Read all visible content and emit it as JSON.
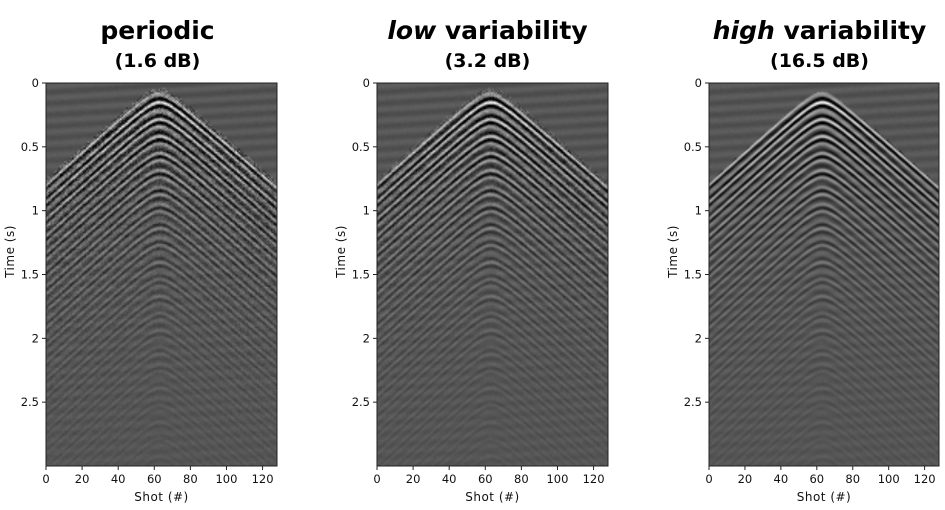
{
  "chart_data": [
    {
      "type": "heatmap",
      "title_em": "",
      "title_rest": "periodic",
      "subtitle": "(1.6 dB)",
      "xlabel": "Shot (#)",
      "ylabel": "Time (s)",
      "xlim": [
        0,
        128
      ],
      "ylim": [
        3.0,
        0
      ],
      "xticks": [
        "0",
        "20",
        "40",
        "60",
        "80",
        "100",
        "120"
      ],
      "yticks": [
        "0",
        "0.5",
        "1",
        "1.5",
        "2",
        "2.5"
      ],
      "apex_shot": 63,
      "apex_time": 0.08,
      "noise_level": 0.55,
      "colormap": "gray",
      "background_color": "#555555"
    },
    {
      "type": "heatmap",
      "title_em": "low",
      "title_rest": " variability",
      "subtitle": "(3.2 dB)",
      "xlabel": "Shot (#)",
      "ylabel": "Time (s)",
      "xlim": [
        0,
        128
      ],
      "ylim": [
        3.0,
        0
      ],
      "xticks": [
        "0",
        "20",
        "40",
        "60",
        "80",
        "100",
        "120"
      ],
      "yticks": [
        "0",
        "0.5",
        "1",
        "1.5",
        "2",
        "2.5"
      ],
      "apex_shot": 63,
      "apex_time": 0.08,
      "noise_level": 0.35,
      "colormap": "gray",
      "background_color": "#555555"
    },
    {
      "type": "heatmap",
      "title_em": "high",
      "title_rest": " variability",
      "subtitle": "(16.5 dB)",
      "xlabel": "Shot (#)",
      "ylabel": "Time (s)",
      "xlim": [
        0,
        128
      ],
      "ylim": [
        3.0,
        0
      ],
      "xticks": [
        "0",
        "20",
        "40",
        "60",
        "80",
        "100",
        "120"
      ],
      "yticks": [
        "0",
        "0.5",
        "1",
        "1.5",
        "2",
        "2.5"
      ],
      "apex_shot": 63,
      "apex_time": 0.08,
      "noise_level": 0.05,
      "colormap": "gray",
      "background_color": "#555555"
    }
  ]
}
